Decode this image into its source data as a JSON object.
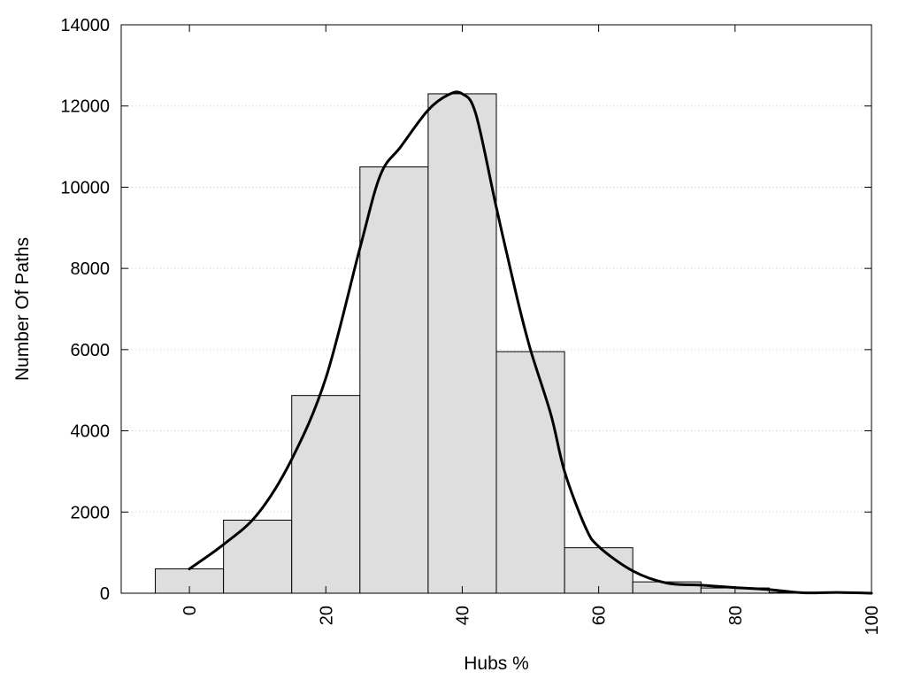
{
  "chart_data": {
    "type": "bar",
    "title": "",
    "xlabel": "Hubs %",
    "ylabel": "Number Of Paths",
    "xlim": [
      -10,
      100
    ],
    "ylim": [
      0,
      14000
    ],
    "xticks": [
      0,
      20,
      40,
      60,
      80,
      100
    ],
    "yticks": [
      0,
      2000,
      4000,
      6000,
      8000,
      10000,
      12000,
      14000
    ],
    "grid": true,
    "legend": "none",
    "bin_width": 10,
    "bars": [
      {
        "x": 0,
        "value": 600
      },
      {
        "x": 10,
        "value": 1800
      },
      {
        "x": 20,
        "value": 4870
      },
      {
        "x": 30,
        "value": 10500
      },
      {
        "x": 40,
        "value": 12300
      },
      {
        "x": 50,
        "value": 5950
      },
      {
        "x": 60,
        "value": 1120
      },
      {
        "x": 70,
        "value": 280
      },
      {
        "x": 80,
        "value": 130
      },
      {
        "x": 90,
        "value": 20
      },
      {
        "x": 100,
        "value": 0
      }
    ],
    "curve": {
      "x": [
        0,
        5,
        10,
        15,
        20,
        25,
        28,
        31,
        35,
        38,
        40,
        42,
        45,
        48,
        50,
        53,
        55,
        58,
        60,
        65,
        70,
        75,
        80,
        85,
        90,
        95,
        100
      ],
      "y": [
        600,
        1200,
        1950,
        3300,
        5300,
        8500,
        10300,
        11000,
        11900,
        12280,
        12300,
        11800,
        9500,
        7300,
        6000,
        4400,
        3000,
        1650,
        1150,
        550,
        250,
        200,
        140,
        90,
        10,
        20,
        0
      ]
    },
    "colors": {
      "bar_fill": "#dedede",
      "bar_stroke": "#000000",
      "curve": "#000000",
      "grid": "#c8c8c8"
    }
  }
}
